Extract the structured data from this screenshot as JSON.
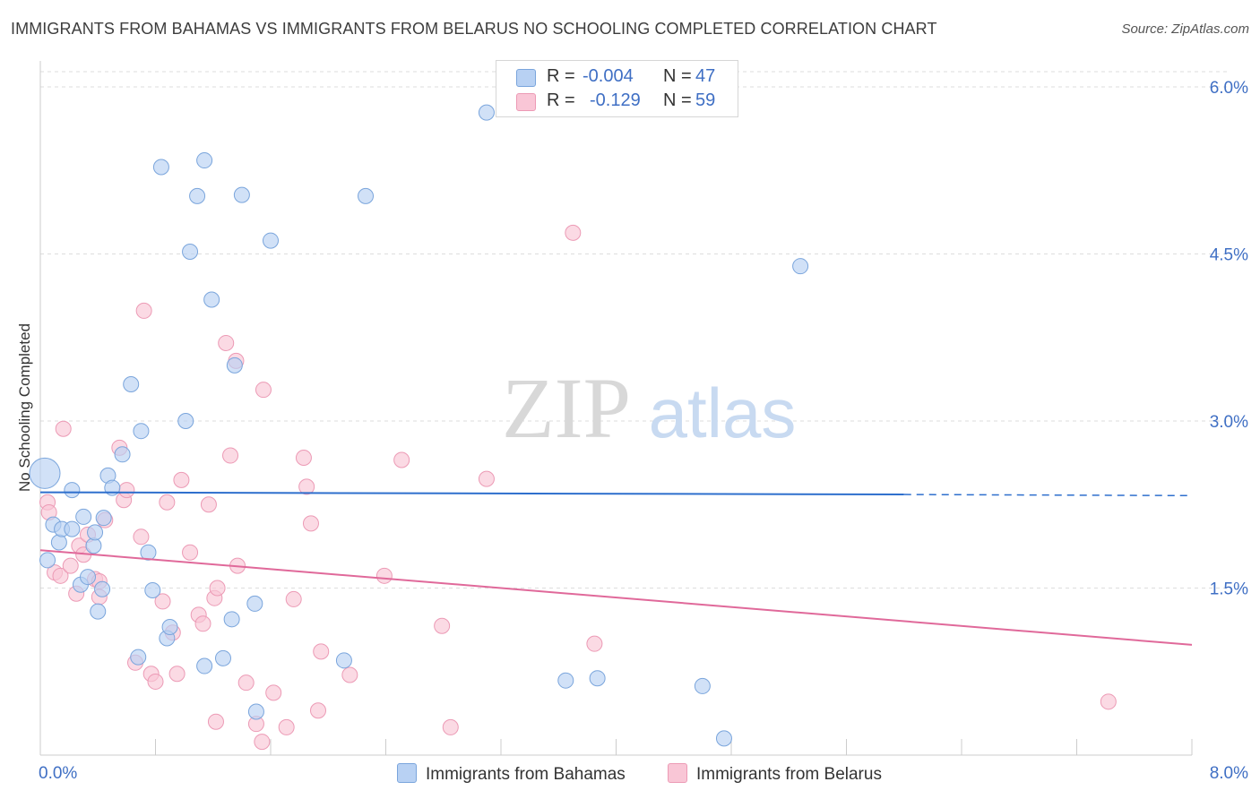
{
  "title": "IMMIGRANTS FROM BAHAMAS VS IMMIGRANTS FROM BELARUS NO SCHOOLING COMPLETED CORRELATION CHART",
  "source": "Source: ZipAtlas.com",
  "watermark": {
    "zip": "ZIP",
    "atlas": "atlas"
  },
  "legend": {
    "r_label": "R =",
    "n_label": "N =",
    "series": [
      {
        "name": "Immigrants from Bahamas",
        "r": "-0.004",
        "n": "47"
      },
      {
        "name": "Immigrants from Belarus",
        "r": "-0.129",
        "n": "59"
      }
    ]
  },
  "chart_data": {
    "type": "scatter",
    "title": "IMMIGRANTS FROM BAHAMAS VS IMMIGRANTS FROM BELARUS NO SCHOOLING COMPLETED CORRELATION CHART",
    "xlabel": "",
    "ylabel": "No Schooling Completed",
    "xlim": [
      0,
      8
    ],
    "ylim": [
      0,
      6.2
    ],
    "x_tick_labels": [
      "0.0%",
      "8.0%"
    ],
    "y_tick_labels": [
      "1.5%",
      "3.0%",
      "4.5%",
      "6.0%"
    ],
    "y_ticks": [
      1.5,
      3.0,
      4.5,
      6.0
    ],
    "colors": {
      "bahamas_fill": "#b8d1f3",
      "bahamas_stroke": "#7aa5dc",
      "bahamas_line": "#2e6fcd",
      "belarus_fill": "#f9c6d6",
      "belarus_stroke": "#ec9ab5",
      "belarus_line": "#e0699a",
      "tick_label": "#3f6fc4"
    },
    "series": [
      {
        "name": "Immigrants from Bahamas",
        "trend": {
          "x0": 0,
          "y0": 2.36,
          "x1": 6.0,
          "y1": 2.34,
          "dash_to": 8.0,
          "dash_y": 2.33
        },
        "points": [
          [
            0.03,
            2.53
          ],
          [
            0.05,
            1.75
          ],
          [
            0.09,
            2.07
          ],
          [
            0.13,
            1.91
          ],
          [
            0.15,
            2.03
          ],
          [
            0.22,
            2.03
          ],
          [
            0.22,
            2.38
          ],
          [
            0.28,
            1.53
          ],
          [
            0.3,
            2.14
          ],
          [
            0.33,
            1.6
          ],
          [
            0.37,
            1.88
          ],
          [
            0.38,
            2.0
          ],
          [
            0.4,
            1.29
          ],
          [
            0.43,
            1.49
          ],
          [
            0.44,
            2.13
          ],
          [
            0.47,
            2.51
          ],
          [
            0.5,
            2.4
          ],
          [
            0.57,
            2.7
          ],
          [
            0.63,
            3.33
          ],
          [
            0.68,
            0.88
          ],
          [
            0.7,
            2.91
          ],
          [
            0.75,
            1.82
          ],
          [
            0.78,
            1.48
          ],
          [
            0.84,
            5.28
          ],
          [
            0.88,
            1.05
          ],
          [
            0.9,
            1.15
          ],
          [
            1.01,
            3.0
          ],
          [
            1.04,
            4.52
          ],
          [
            1.09,
            5.02
          ],
          [
            1.14,
            5.34
          ],
          [
            1.14,
            0.8
          ],
          [
            1.19,
            4.09
          ],
          [
            1.27,
            0.87
          ],
          [
            1.33,
            1.22
          ],
          [
            1.35,
            3.5
          ],
          [
            1.4,
            5.03
          ],
          [
            1.49,
            1.36
          ],
          [
            1.5,
            0.39
          ],
          [
            1.6,
            4.62
          ],
          [
            2.11,
            0.85
          ],
          [
            2.26,
            5.02
          ],
          [
            3.1,
            5.77
          ],
          [
            3.65,
            0.67
          ],
          [
            3.87,
            0.69
          ],
          [
            4.6,
            0.62
          ],
          [
            4.75,
            0.15
          ],
          [
            5.28,
            4.39
          ]
        ]
      },
      {
        "name": "Immigrants from Belarus",
        "trend": {
          "x0": 0,
          "y0": 1.84,
          "x1": 8.0,
          "y1": 0.99
        },
        "points": [
          [
            0.05,
            2.27
          ],
          [
            0.06,
            2.18
          ],
          [
            0.1,
            1.64
          ],
          [
            0.14,
            1.61
          ],
          [
            0.16,
            2.93
          ],
          [
            0.21,
            1.7
          ],
          [
            0.25,
            1.45
          ],
          [
            0.27,
            1.88
          ],
          [
            0.3,
            1.8
          ],
          [
            0.33,
            1.98
          ],
          [
            0.38,
            1.58
          ],
          [
            0.41,
            1.56
          ],
          [
            0.41,
            1.42
          ],
          [
            0.45,
            2.11
          ],
          [
            0.55,
            2.76
          ],
          [
            0.58,
            2.29
          ],
          [
            0.6,
            2.38
          ],
          [
            0.66,
            0.83
          ],
          [
            0.7,
            1.96
          ],
          [
            0.72,
            3.99
          ],
          [
            0.77,
            0.73
          ],
          [
            0.8,
            0.66
          ],
          [
            0.85,
            1.38
          ],
          [
            0.88,
            2.27
          ],
          [
            0.92,
            1.1
          ],
          [
            0.95,
            0.73
          ],
          [
            0.98,
            2.47
          ],
          [
            1.04,
            1.82
          ],
          [
            1.1,
            1.26
          ],
          [
            1.13,
            1.18
          ],
          [
            1.17,
            2.25
          ],
          [
            1.21,
            1.41
          ],
          [
            1.23,
            1.5
          ],
          [
            1.22,
            0.3
          ],
          [
            1.29,
            3.7
          ],
          [
            1.32,
            2.69
          ],
          [
            1.36,
            3.54
          ],
          [
            1.37,
            1.7
          ],
          [
            1.43,
            0.65
          ],
          [
            1.5,
            0.28
          ],
          [
            1.54,
            0.12
          ],
          [
            1.55,
            3.28
          ],
          [
            1.62,
            0.56
          ],
          [
            1.71,
            0.25
          ],
          [
            1.76,
            1.4
          ],
          [
            1.83,
            2.67
          ],
          [
            1.85,
            2.41
          ],
          [
            1.88,
            2.08
          ],
          [
            1.93,
            0.4
          ],
          [
            1.95,
            0.93
          ],
          [
            2.15,
            0.72
          ],
          [
            2.39,
            1.61
          ],
          [
            2.51,
            2.65
          ],
          [
            2.79,
            1.16
          ],
          [
            2.85,
            0.25
          ],
          [
            3.1,
            2.48
          ],
          [
            3.7,
            4.69
          ],
          [
            3.85,
            1.0
          ],
          [
            7.42,
            0.48
          ]
        ]
      }
    ]
  }
}
